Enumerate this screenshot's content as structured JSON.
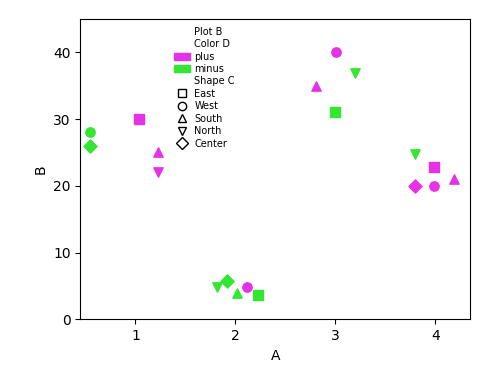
{
  "chart_data": {
    "type": "scatter",
    "x_label": "A",
    "y_label": "B",
    "xlim": [
      0.45,
      4.35
    ],
    "xticks": [
      1,
      2,
      3,
      4
    ],
    "ylim": [
      0,
      45
    ],
    "yticks": [
      0,
      10,
      20,
      30,
      40
    ],
    "legend": "upper left",
    "legend_title": "Plot B",
    "color_title": "Color D",
    "shape_title": "Shape C",
    "shapes": [
      {
        "name": "East",
        "marker": "square"
      },
      {
        "name": "West",
        "marker": "circle"
      },
      {
        "name": "South",
        "marker": "triangle_up"
      },
      {
        "name": "North",
        "marker": "triangle_down"
      },
      {
        "name": "Center",
        "marker": "diamond"
      }
    ],
    "series": [
      {
        "name": "plus",
        "color": "#e632e6",
        "x": [
          1.04,
          1.23,
          1.23,
          2.12,
          3.01,
          2.81,
          3.99,
          3.8,
          3.99,
          4.19
        ],
        "values": [
          30,
          25,
          22,
          4.8,
          40,
          35,
          22.8,
          20,
          20,
          21
        ],
        "shape": [
          "East",
          "South",
          "North",
          "West",
          "West",
          "South",
          "East",
          "Center",
          "West",
          "South"
        ]
      },
      {
        "name": "minus",
        "color": "#32e632",
        "x": [
          0.55,
          0.55,
          1.82,
          1.92,
          2.02,
          2.23,
          3.2,
          3.0,
          3.8
        ],
        "values": [
          28,
          26,
          4.8,
          5.8,
          4,
          3.7,
          36.9,
          31,
          24.7
        ],
        "shape": [
          "West",
          "Center",
          "North",
          "Center",
          "South",
          "East",
          "North",
          "East",
          "North"
        ]
      }
    ]
  }
}
